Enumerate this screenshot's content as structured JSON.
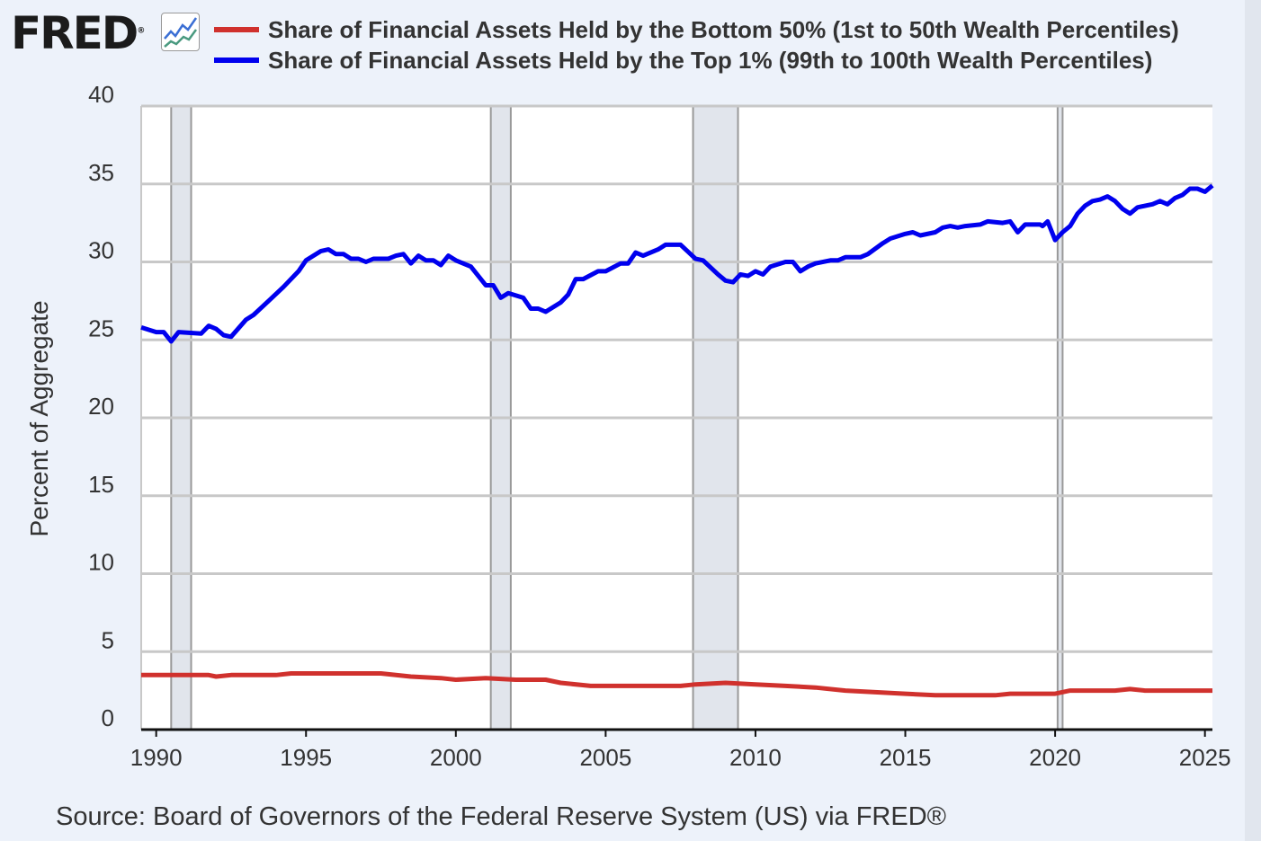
{
  "header": {
    "logo_text": "FRED",
    "logo_icon": "line-chart-icon"
  },
  "chart_data": {
    "type": "line",
    "title": "",
    "xlabel": "",
    "ylabel": "Percent of Aggregate",
    "ylim": [
      0,
      40
    ],
    "yticks": [
      "0",
      "5",
      "10",
      "15",
      "20",
      "25",
      "30",
      "35",
      "40"
    ],
    "xlim": [
      "1989-07",
      "2025-04"
    ],
    "xticks": [
      "1990",
      "1995",
      "2000",
      "2005",
      "2010",
      "2015",
      "2020",
      "2025"
    ],
    "grid": "horizontal",
    "legend_position": "top",
    "recessions": [
      [
        "1990-07",
        "1991-03"
      ],
      [
        "2001-03",
        "2001-11"
      ],
      [
        "2007-12",
        "2009-06"
      ],
      [
        "2020-02",
        "2020-04"
      ]
    ],
    "series": [
      {
        "name": "Share of Financial Assets Held by the Bottom 50% (1st to 50th Wealth Percentiles)",
        "color": "#d0312d",
        "points": [
          [
            "1989-07",
            3.5
          ],
          [
            "1991-10",
            3.5
          ],
          [
            "1992-01",
            3.4
          ],
          [
            "1992-07",
            3.5
          ],
          [
            "1994-01",
            3.5
          ],
          [
            "1994-07",
            3.6
          ],
          [
            "1997-07",
            3.6
          ],
          [
            "1998-07",
            3.4
          ],
          [
            "1999-07",
            3.3
          ],
          [
            "2000-01",
            3.2
          ],
          [
            "2001-01",
            3.3
          ],
          [
            "2002-01",
            3.2
          ],
          [
            "2003-01",
            3.2
          ],
          [
            "2003-07",
            3.0
          ],
          [
            "2004-07",
            2.8
          ],
          [
            "2006-01",
            2.8
          ],
          [
            "2007-07",
            2.8
          ],
          [
            "2008-01",
            2.9
          ],
          [
            "2009-01",
            3.0
          ],
          [
            "2010-01",
            2.9
          ],
          [
            "2011-01",
            2.8
          ],
          [
            "2012-01",
            2.7
          ],
          [
            "2013-01",
            2.5
          ],
          [
            "2014-01",
            2.4
          ],
          [
            "2015-01",
            2.3
          ],
          [
            "2016-01",
            2.2
          ],
          [
            "2018-01",
            2.2
          ],
          [
            "2018-07",
            2.3
          ],
          [
            "2020-01",
            2.3
          ],
          [
            "2020-07",
            2.5
          ],
          [
            "2022-01",
            2.5
          ],
          [
            "2022-07",
            2.6
          ],
          [
            "2023-01",
            2.5
          ],
          [
            "2025-04",
            2.5
          ]
        ]
      },
      {
        "name": "Share of Financial Assets Held by the Top 1% (99th to 100th Wealth Percentiles)",
        "color": "#0000ee",
        "points": [
          [
            "1989-07",
            25.8
          ],
          [
            "1990-01",
            25.5
          ],
          [
            "1990-04",
            25.5
          ],
          [
            "1990-07",
            24.9
          ],
          [
            "1990-10",
            25.5
          ],
          [
            "1991-07",
            25.4
          ],
          [
            "1991-10",
            25.9
          ],
          [
            "1992-01",
            25.7
          ],
          [
            "1992-04",
            25.3
          ],
          [
            "1992-07",
            25.2
          ],
          [
            "1993-01",
            26.3
          ],
          [
            "1993-04",
            26.6
          ],
          [
            "1993-10",
            27.5
          ],
          [
            "1994-04",
            28.4
          ],
          [
            "1994-10",
            29.4
          ],
          [
            "1995-01",
            30.1
          ],
          [
            "1995-07",
            30.7
          ],
          [
            "1995-10",
            30.8
          ],
          [
            "1996-01",
            30.5
          ],
          [
            "1996-04",
            30.5
          ],
          [
            "1996-07",
            30.2
          ],
          [
            "1996-10",
            30.2
          ],
          [
            "1997-01",
            30.0
          ],
          [
            "1997-04",
            30.2
          ],
          [
            "1997-10",
            30.2
          ],
          [
            "1998-01",
            30.4
          ],
          [
            "1998-04",
            30.5
          ],
          [
            "1998-07",
            29.9
          ],
          [
            "1998-10",
            30.4
          ],
          [
            "1999-01",
            30.1
          ],
          [
            "1999-04",
            30.1
          ],
          [
            "1999-07",
            29.8
          ],
          [
            "1999-10",
            30.4
          ],
          [
            "2000-01",
            30.1
          ],
          [
            "2000-07",
            29.7
          ],
          [
            "2001-01",
            28.5
          ],
          [
            "2001-04",
            28.5
          ],
          [
            "2001-07",
            27.7
          ],
          [
            "2001-10",
            28.0
          ],
          [
            "2002-04",
            27.7
          ],
          [
            "2002-07",
            27.0
          ],
          [
            "2002-10",
            27.0
          ],
          [
            "2003-01",
            26.8
          ],
          [
            "2003-07",
            27.4
          ],
          [
            "2003-10",
            27.9
          ],
          [
            "2004-01",
            28.9
          ],
          [
            "2004-04",
            28.9
          ],
          [
            "2004-10",
            29.4
          ],
          [
            "2005-01",
            29.4
          ],
          [
            "2005-07",
            29.9
          ],
          [
            "2005-10",
            29.9
          ],
          [
            "2006-01",
            30.6
          ],
          [
            "2006-04",
            30.4
          ],
          [
            "2006-10",
            30.8
          ],
          [
            "2007-01",
            31.1
          ],
          [
            "2007-07",
            31.1
          ],
          [
            "2008-01",
            30.2
          ],
          [
            "2008-04",
            30.1
          ],
          [
            "2008-10",
            29.2
          ],
          [
            "2009-01",
            28.8
          ],
          [
            "2009-04",
            28.7
          ],
          [
            "2009-07",
            29.2
          ],
          [
            "2009-10",
            29.1
          ],
          [
            "2010-01",
            29.4
          ],
          [
            "2010-04",
            29.2
          ],
          [
            "2010-07",
            29.7
          ],
          [
            "2011-01",
            30.0
          ],
          [
            "2011-04",
            30.0
          ],
          [
            "2011-07",
            29.4
          ],
          [
            "2011-10",
            29.7
          ],
          [
            "2012-01",
            29.9
          ],
          [
            "2012-07",
            30.1
          ],
          [
            "2012-10",
            30.1
          ],
          [
            "2013-01",
            30.3
          ],
          [
            "2013-07",
            30.3
          ],
          [
            "2013-10",
            30.5
          ],
          [
            "2014-04",
            31.2
          ],
          [
            "2014-07",
            31.5
          ],
          [
            "2015-01",
            31.8
          ],
          [
            "2015-04",
            31.9
          ],
          [
            "2015-07",
            31.7
          ],
          [
            "2016-01",
            31.9
          ],
          [
            "2016-04",
            32.2
          ],
          [
            "2016-07",
            32.3
          ],
          [
            "2016-10",
            32.2
          ],
          [
            "2017-01",
            32.3
          ],
          [
            "2017-07",
            32.4
          ],
          [
            "2017-10",
            32.6
          ],
          [
            "2018-04",
            32.5
          ],
          [
            "2018-07",
            32.6
          ],
          [
            "2018-10",
            31.9
          ],
          [
            "2019-01",
            32.4
          ],
          [
            "2019-07",
            32.4
          ],
          [
            "2019-08",
            32.3
          ],
          [
            "2019-10",
            32.6
          ],
          [
            "2020-01",
            31.4
          ],
          [
            "2020-04",
            31.9
          ],
          [
            "2020-07",
            32.3
          ],
          [
            "2020-10",
            33.1
          ],
          [
            "2021-01",
            33.6
          ],
          [
            "2021-04",
            33.9
          ],
          [
            "2021-07",
            34.0
          ],
          [
            "2021-10",
            34.2
          ],
          [
            "2022-01",
            33.9
          ],
          [
            "2022-04",
            33.4
          ],
          [
            "2022-07",
            33.1
          ],
          [
            "2022-10",
            33.5
          ],
          [
            "2023-04",
            33.7
          ],
          [
            "2023-07",
            33.9
          ],
          [
            "2023-10",
            33.7
          ],
          [
            "2024-01",
            34.1
          ],
          [
            "2024-04",
            34.3
          ],
          [
            "2024-07",
            34.7
          ],
          [
            "2024-10",
            34.7
          ],
          [
            "2025-01",
            34.5
          ],
          [
            "2025-04",
            34.9
          ]
        ]
      }
    ]
  },
  "footer": {
    "source": "Source: Board of Governors of the Federal Reserve System (US) via FRED®"
  }
}
